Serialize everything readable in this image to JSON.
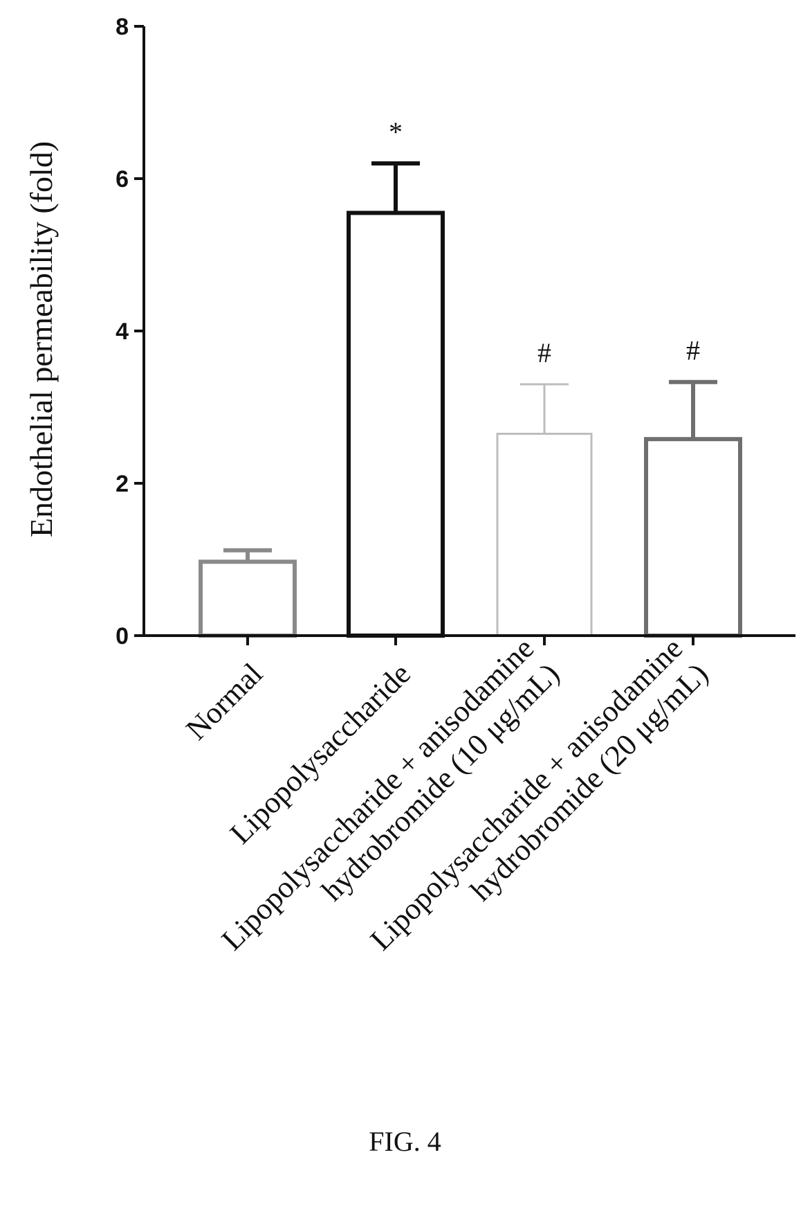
{
  "figure_caption": "FIG. 4",
  "chart_data": {
    "type": "bar",
    "ylabel": "Endothelial permeability (fold)",
    "xlabel": "",
    "ylim": [
      0,
      8
    ],
    "yticks": [
      0,
      2,
      4,
      6,
      8
    ],
    "categories": [
      [
        "Normal"
      ],
      [
        "Lipopolysaccharide"
      ],
      [
        "Lipopolysaccharide + anisodamine",
        "hydrobromide (10 μg/mL)"
      ],
      [
        "Lipopolysaccharide + anisodamine",
        "hydrobromide (20 μg/mL)"
      ]
    ],
    "values": [
      0.97,
      5.55,
      2.65,
      2.58
    ],
    "errors": [
      0.15,
      0.65,
      0.65,
      0.75
    ],
    "annotations": [
      "",
      "*",
      "#",
      "#"
    ],
    "bar_colors": [
      "#8a8a8a",
      "#111111",
      "#bdbdbd",
      "#6f6f6f"
    ],
    "fill": "#ffffff"
  }
}
